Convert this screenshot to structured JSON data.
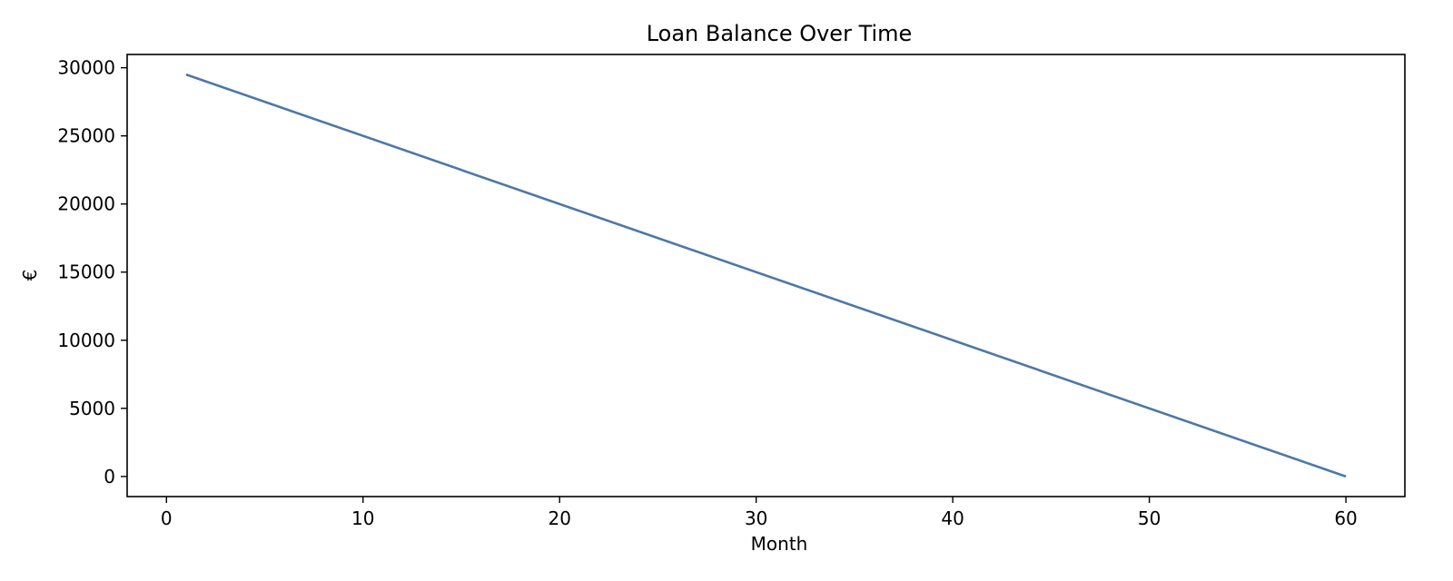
{
  "chart_data": {
    "type": "line",
    "title": "Loan Balance Over Time",
    "xlabel": "Month",
    "ylabel": "€",
    "xlim": [
      -2.0,
      63.0
    ],
    "ylim": [
      -1475,
      30975
    ],
    "x_ticks": [
      0,
      10,
      20,
      30,
      40,
      50,
      60
    ],
    "y_ticks": [
      0,
      5000,
      10000,
      15000,
      20000,
      25000,
      30000
    ],
    "grid": false,
    "series": [
      {
        "color": "#4c78a8",
        "x": [
          1,
          60
        ],
        "y": [
          29500,
          0
        ]
      }
    ]
  }
}
